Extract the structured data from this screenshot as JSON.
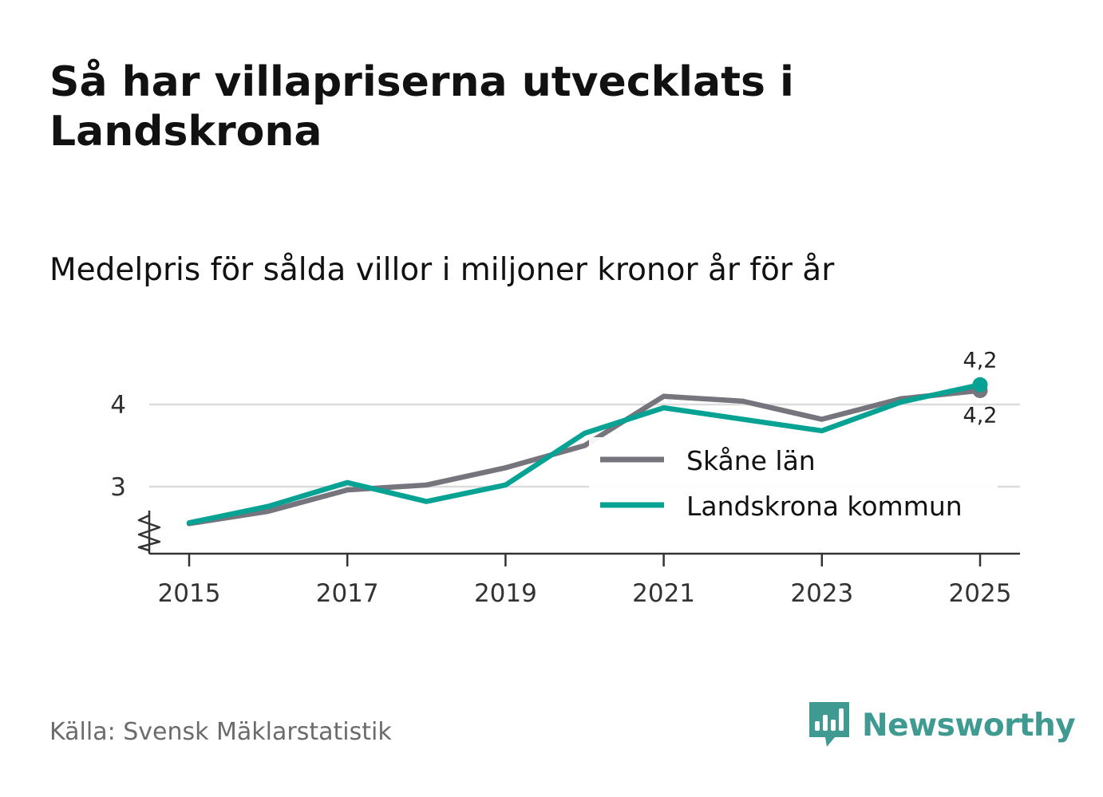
{
  "title": "Så har villapriserna utvecklats i Landskrona",
  "subtitle": "Medelpris för sålda villor i miljoner kronor år för år",
  "source": "Källa: Svensk Mäklarstatistik",
  "brand": {
    "name": "Newsworthy",
    "icon": "newsworthy-logo-icon",
    "color": "#3f9a91"
  },
  "chart_data": {
    "type": "line",
    "title": "Så har villapriserna utvecklats i Landskrona",
    "subtitle": "Medelpris för sålda villor i miljoner kronor år för år",
    "xlabel": "",
    "ylabel": "",
    "x": [
      2015,
      2016,
      2017,
      2018,
      2019,
      2020,
      2021,
      2022,
      2023,
      2024,
      2025
    ],
    "x_ticks": [
      "2015",
      "2017",
      "2019",
      "2021",
      "2023",
      "2025"
    ],
    "y_ticks": [
      "3",
      "4"
    ],
    "ylim": [
      2.18,
      4.48
    ],
    "xlim": [
      2014.5,
      2025.5
    ],
    "grid": true,
    "legend_position": "bottom-right",
    "series": [
      {
        "name": "Skåne län",
        "color": "#76747c",
        "values": [
          2.55,
          2.7,
          2.96,
          3.02,
          3.23,
          3.5,
          4.1,
          4.04,
          3.82,
          4.07,
          4.17
        ],
        "end_label": "4,2"
      },
      {
        "name": "Landskrona kommun",
        "color": "#06a293",
        "values": [
          2.56,
          2.76,
          3.05,
          2.82,
          3.02,
          3.65,
          3.96,
          3.82,
          3.68,
          4.03,
          4.24
        ],
        "end_label": "4,2"
      }
    ]
  }
}
